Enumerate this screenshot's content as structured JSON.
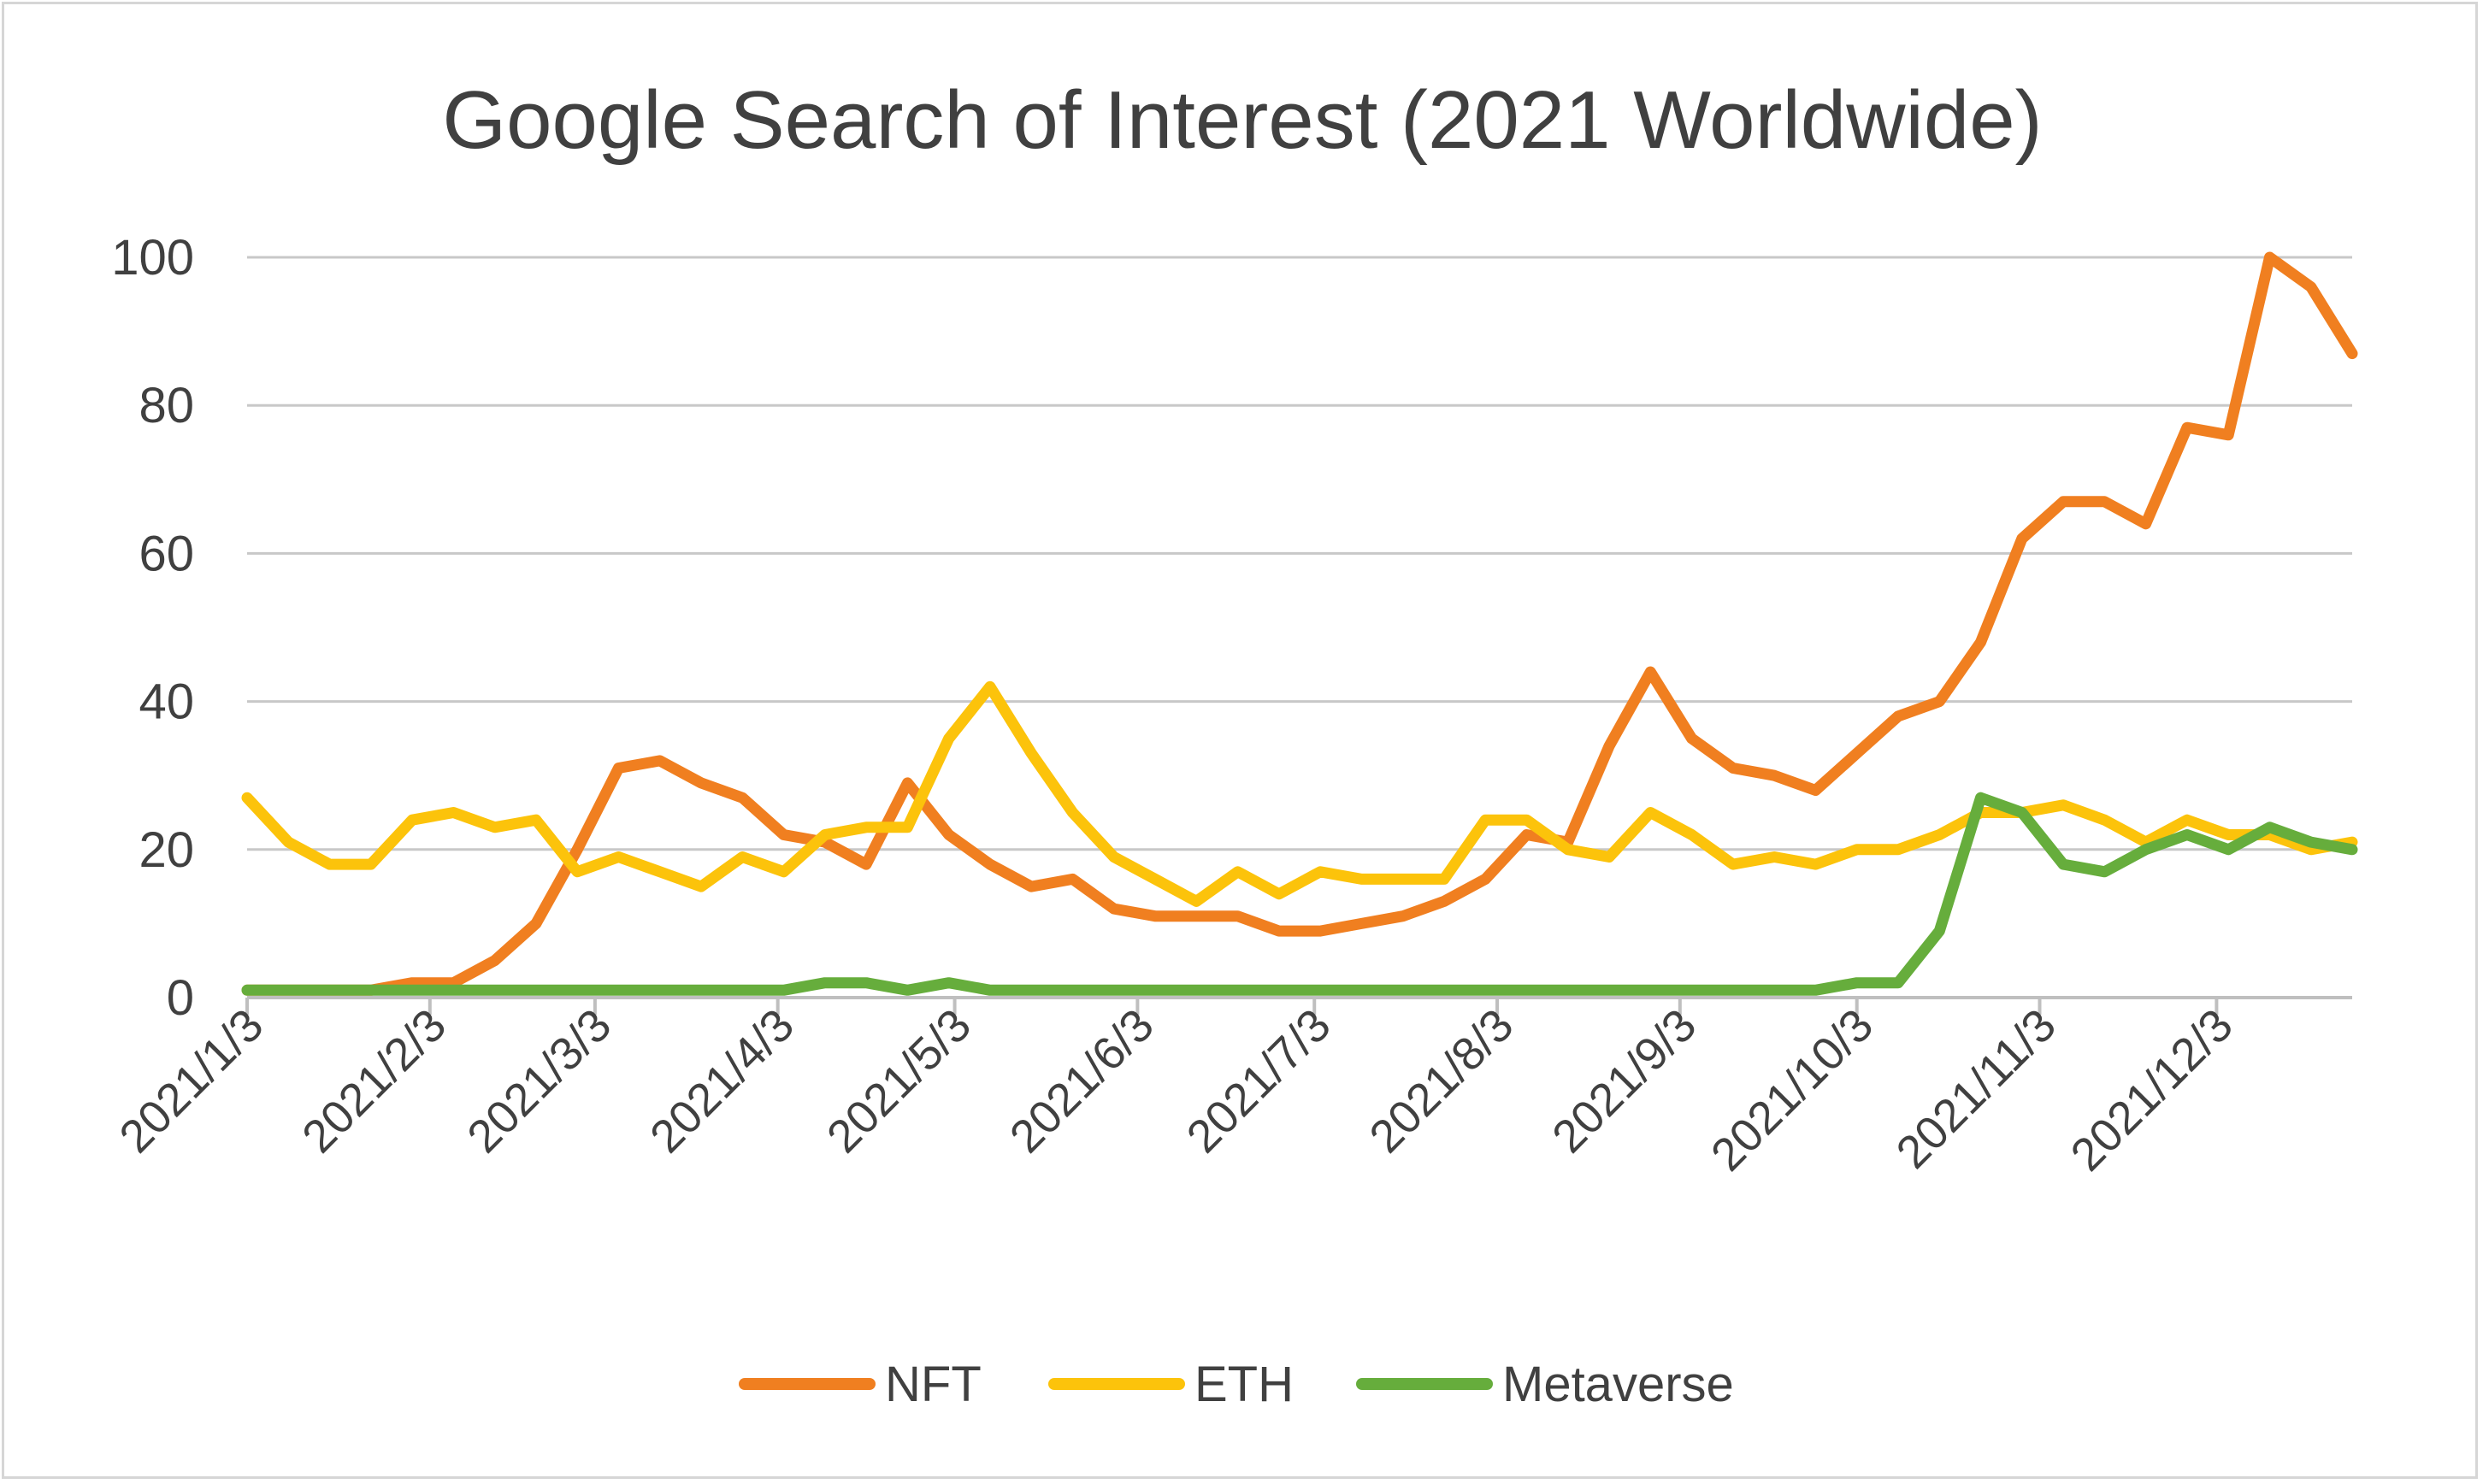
{
  "chart_data": {
    "type": "line",
    "title": "Google Search of Interest (2021 Worldwide)",
    "xlabel": "",
    "ylabel": "",
    "ylim": [
      0,
      100
    ],
    "yticks": [
      0,
      20,
      40,
      60,
      80,
      100
    ],
    "x_tick_labels": [
      "2021/1/3",
      "2021/2/3",
      "2021/3/3",
      "2021/4/3",
      "2021/5/3",
      "2021/6/3",
      "2021/7/3",
      "2021/8/3",
      "2021/9/3",
      "2021/10/3",
      "2021/11/3",
      "2021/12/3"
    ],
    "x_tick_dates": [
      "2021-01-03",
      "2021-02-03",
      "2021-03-03",
      "2021-04-03",
      "2021-05-03",
      "2021-06-03",
      "2021-07-03",
      "2021-08-03",
      "2021-09-03",
      "2021-10-03",
      "2021-11-03",
      "2021-12-03"
    ],
    "x": [
      "2021-01-03",
      "2021-01-10",
      "2021-01-17",
      "2021-01-24",
      "2021-01-31",
      "2021-02-07",
      "2021-02-14",
      "2021-02-21",
      "2021-02-28",
      "2021-03-07",
      "2021-03-14",
      "2021-03-21",
      "2021-03-28",
      "2021-04-04",
      "2021-04-11",
      "2021-04-18",
      "2021-04-25",
      "2021-05-02",
      "2021-05-09",
      "2021-05-16",
      "2021-05-23",
      "2021-05-30",
      "2021-06-06",
      "2021-06-13",
      "2021-06-20",
      "2021-06-27",
      "2021-07-04",
      "2021-07-11",
      "2021-07-18",
      "2021-07-25",
      "2021-08-01",
      "2021-08-08",
      "2021-08-15",
      "2021-08-22",
      "2021-08-29",
      "2021-09-05",
      "2021-09-12",
      "2021-09-19",
      "2021-09-26",
      "2021-10-03",
      "2021-10-10",
      "2021-10-17",
      "2021-10-24",
      "2021-10-31",
      "2021-11-07",
      "2021-11-14",
      "2021-11-21",
      "2021-11-28",
      "2021-12-05",
      "2021-12-12",
      "2021-12-19",
      "2021-12-26"
    ],
    "series": [
      {
        "name": "NFT",
        "color": "#f07f20",
        "values": [
          1,
          1,
          1,
          1,
          2,
          2,
          5,
          10,
          20,
          31,
          32,
          29,
          27,
          22,
          21,
          18,
          29,
          22,
          18,
          15,
          16,
          12,
          11,
          11,
          11,
          9,
          9,
          10,
          11,
          13,
          16,
          22,
          21,
          34,
          44,
          35,
          31,
          30,
          28,
          33,
          38,
          40,
          48,
          62,
          67,
          67,
          64,
          77,
          76,
          100,
          96,
          87
        ]
      },
      {
        "name": "ETH",
        "color": "#fcc30b",
        "values": [
          27,
          21,
          18,
          18,
          24,
          25,
          23,
          24,
          17,
          19,
          17,
          15,
          19,
          17,
          22,
          23,
          23,
          35,
          42,
          33,
          25,
          19,
          16,
          13,
          17,
          14,
          17,
          16,
          16,
          16,
          24,
          24,
          20,
          19,
          25,
          22,
          18,
          19,
          18,
          20,
          20,
          22,
          25,
          25,
          26,
          24,
          21,
          24,
          22,
          22,
          20,
          21
        ]
      },
      {
        "name": "Metaverse",
        "color": "#66ad3c",
        "values": [
          1,
          1,
          1,
          1,
          1,
          1,
          1,
          1,
          1,
          1,
          1,
          1,
          1,
          1,
          2,
          2,
          1,
          2,
          1,
          1,
          1,
          1,
          1,
          1,
          1,
          1,
          1,
          1,
          1,
          1,
          1,
          1,
          1,
          1,
          1,
          1,
          1,
          1,
          1,
          2,
          2,
          9,
          27,
          25,
          18,
          17,
          20,
          22,
          20,
          23,
          21,
          20
        ]
      }
    ],
    "legend_position": "bottom",
    "grid": true
  }
}
